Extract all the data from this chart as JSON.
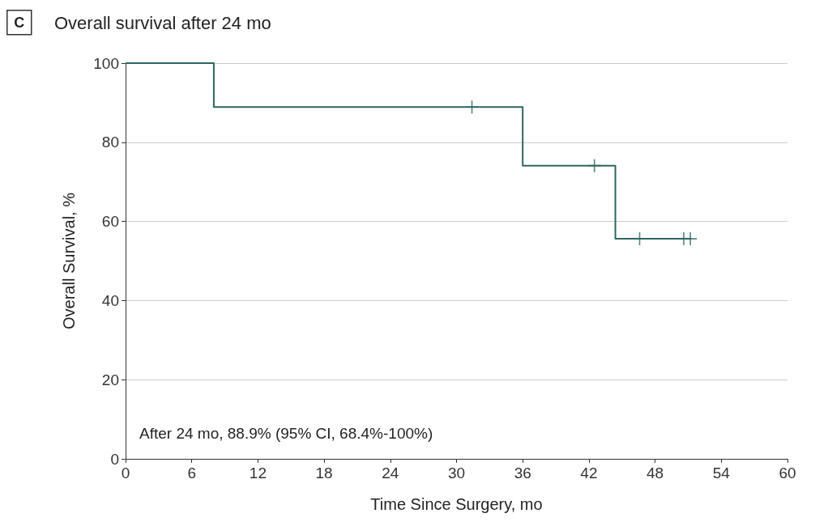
{
  "chart_data": {
    "type": "step",
    "title": "Overall survival after 24 mo",
    "xlabel": "Time Since Surgery, mo",
    "ylabel": "Overall Survival, %",
    "annotations": [
      "C",
      "After 24 mo, 88.9% (95% CI, 68.4%-100%)"
    ],
    "series": [
      {
        "color": "#2e6660",
        "x": [
          0,
          8,
          36,
          44.4,
          51.3
        ],
        "values": [
          100,
          88.9,
          74.1,
          55.6,
          55.6
        ],
        "marker": "none"
      },
      {
        "type": "scatter",
        "color": "#2e6660",
        "x": [
          31.4,
          42.5,
          46.6,
          50.6,
          51.2
        ],
        "values": [
          88.9,
          74.1,
          55.6,
          55.6,
          55.6
        ],
        "marker": "cross"
      }
    ],
    "xlim": [
      0,
      60
    ],
    "xticks": [
      0,
      6,
      12,
      18,
      24,
      30,
      36,
      42,
      48,
      54,
      60
    ],
    "ylim": [
      0,
      100
    ],
    "yticks": [
      0,
      20,
      40,
      60,
      80,
      100
    ],
    "grid": "y"
  }
}
